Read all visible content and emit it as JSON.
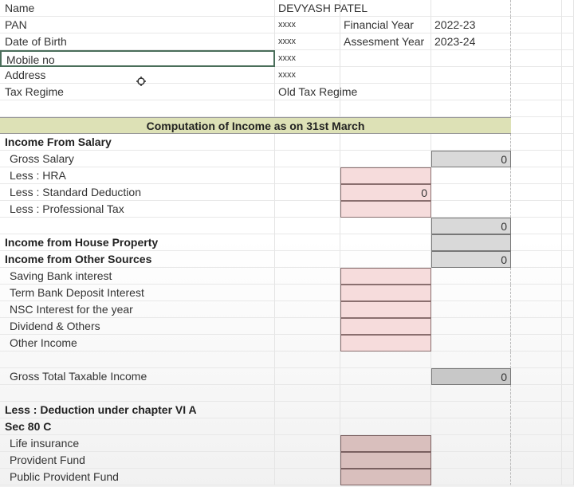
{
  "sheet": {
    "title_banner": "Computation of Income as on 31st March",
    "rows": [
      {
        "A": "Name",
        "B": "DEVYASH PATEL"
      },
      {
        "A": "PAN",
        "B": "xxxx",
        "C": "Financial Year",
        "D": "2022-23"
      },
      {
        "A": "Date of Birth",
        "B": "xxxx",
        "C": "Assesment Year",
        "D": "2023-24"
      },
      {
        "A": "Mobile no",
        "B": "xxxx",
        "selected": "A"
      },
      {
        "A": "Address",
        "B": "xxxx"
      },
      {
        "A": "Tax Regime",
        "B": "Old Tax Regime"
      },
      {},
      {
        "banner": true
      },
      {
        "A": "Income From Salary",
        "bold": true
      },
      {
        "A": "Gross Salary",
        "indent": true,
        "D": "0",
        "fillD": "gray"
      },
      {
        "A": "Less : HRA",
        "indent": true,
        "fillC": "pink"
      },
      {
        "A": "Less : Standard Deduction",
        "indent": true,
        "C": "0",
        "fillC": "pink"
      },
      {
        "A": "Less : Professional Tax",
        "indent": true,
        "fillC": "pink"
      },
      {
        "D": "0",
        "fillD": "gray"
      },
      {
        "A": "Income from House Property",
        "bold": true,
        "fillD": "gray"
      },
      {
        "A": "Income from Other Sources",
        "bold": true,
        "D": "0",
        "fillD": "gray"
      },
      {
        "A": "Saving Bank interest",
        "indent": true,
        "fillC": "pink"
      },
      {
        "A": "Term Bank Deposit Interest",
        "indent": true,
        "fillC": "pink"
      },
      {
        "A": "NSC Interest for the year",
        "indent": true,
        "fillC": "pink"
      },
      {
        "A": "Dividend & Others",
        "indent": true,
        "fillC": "pink"
      },
      {
        "A": "Other Income",
        "indent": true,
        "fillC": "pink"
      },
      {},
      {
        "A": "Gross Total Taxable Income",
        "indent": true,
        "D": "0",
        "fillD": "dgray"
      },
      {},
      {
        "A": "Less : Deduction under chapter VI A",
        "bold": true
      },
      {
        "A": "Sec 80 C",
        "bold": true
      },
      {
        "A": "Life insurance",
        "indent": true,
        "fillC": "rose"
      },
      {
        "A": "Provident Fund",
        "indent": true,
        "fillC": "rose"
      },
      {
        "A": "Public Provident Fund",
        "indent": true,
        "fillC": "rose"
      }
    ]
  },
  "colors": {
    "input_fill": "#f6dcdc",
    "deduction_fill": "#d9bfbd",
    "total_fill": "#d9d9d9",
    "banner_fill": "#dde1b6"
  },
  "cursor_icon": "move-cursor-icon"
}
